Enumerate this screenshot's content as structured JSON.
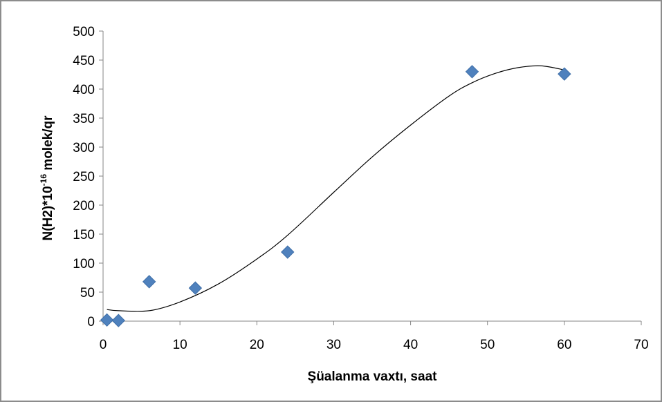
{
  "chart_data": {
    "type": "scatter",
    "title": "",
    "xlabel": "Şüalanma vaxtı, saat",
    "ylabel": {
      "base": "N(H2)*10",
      "exponent": "-16",
      "unit": " molek/qr"
    },
    "xlim": [
      0,
      70
    ],
    "ylim": [
      0,
      500
    ],
    "x_ticks": [
      "0",
      "10",
      "20",
      "30",
      "40",
      "50",
      "60",
      "70"
    ],
    "y_ticks": [
      "0",
      "50",
      "100",
      "150",
      "200",
      "250",
      "300",
      "350",
      "400",
      "450",
      "500"
    ],
    "grid": false,
    "legend": "none",
    "series": [
      {
        "marker": "diamond",
        "color": "#4f81bd",
        "points": [
          {
            "x": 0.5,
            "y": 2
          },
          {
            "x": 2,
            "y": 1
          },
          {
            "x": 6,
            "y": 68
          },
          {
            "x": 12,
            "y": 57
          },
          {
            "x": 24,
            "y": 119
          },
          {
            "x": 48,
            "y": 430
          },
          {
            "x": 60,
            "y": 426
          }
        ]
      }
    ],
    "trendline": {
      "type": "polynomial",
      "color": "#000000",
      "x_range": [
        0.5,
        60
      ],
      "curve": [
        {
          "x": 0.5,
          "y": 20
        },
        {
          "x": 2,
          "y": 18
        },
        {
          "x": 6,
          "y": 18
        },
        {
          "x": 10,
          "y": 33
        },
        {
          "x": 15,
          "y": 64
        },
        {
          "x": 20,
          "y": 107
        },
        {
          "x": 24,
          "y": 148
        },
        {
          "x": 30,
          "y": 222
        },
        {
          "x": 35,
          "y": 283
        },
        {
          "x": 40,
          "y": 338
        },
        {
          "x": 45,
          "y": 388
        },
        {
          "x": 48,
          "y": 411
        },
        {
          "x": 51,
          "y": 427
        },
        {
          "x": 54,
          "y": 437
        },
        {
          "x": 57,
          "y": 440
        },
        {
          "x": 60,
          "y": 433
        }
      ]
    }
  }
}
